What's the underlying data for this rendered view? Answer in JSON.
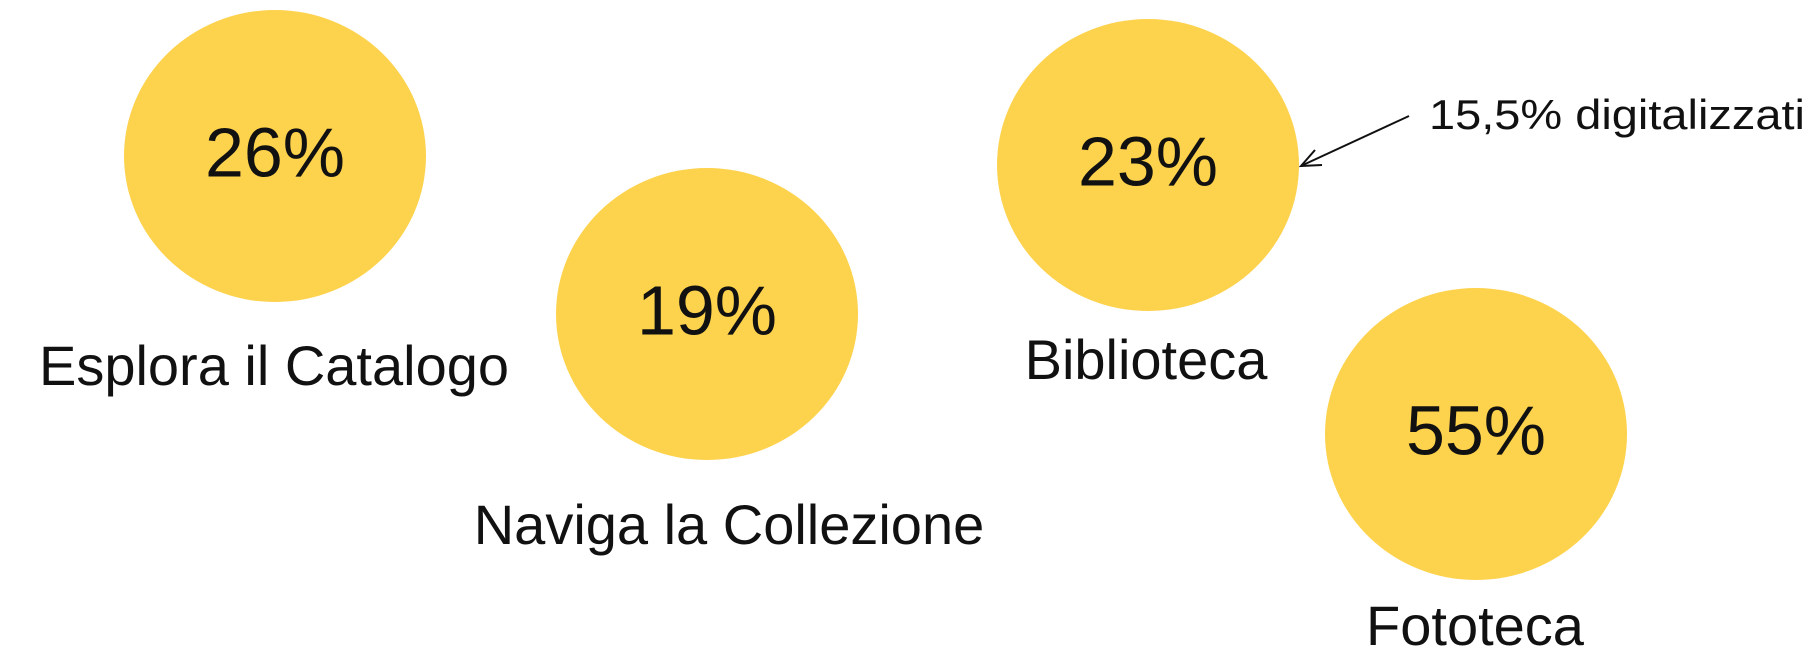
{
  "items": [
    {
      "value": "26%",
      "label": "Esplora il Catalogo"
    },
    {
      "value": "19%",
      "label": "Naviga la Collezione"
    },
    {
      "value": "23%",
      "label": "Biblioteca"
    },
    {
      "value": "55%",
      "label": "Fototeca"
    }
  ],
  "annotation": "15,5% digitalizzati"
}
